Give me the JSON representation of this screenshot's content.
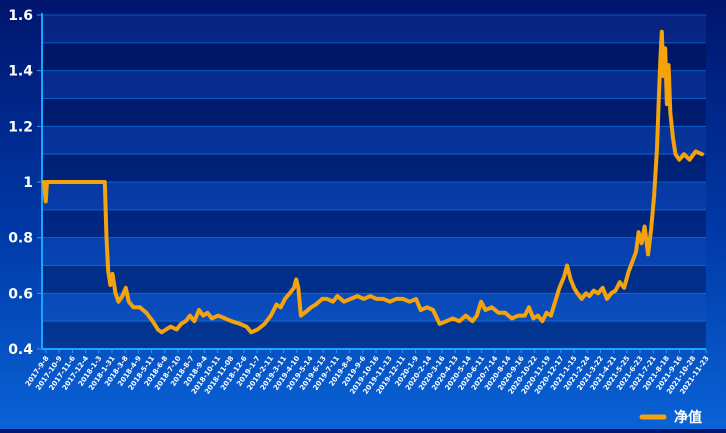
{
  "chart_data": {
    "type": "line",
    "title": "",
    "xlabel": "",
    "ylabel": "",
    "ylim": [
      0.4,
      1.6
    ],
    "yticks": [
      "0.4",
      "0.6",
      "0.8",
      "1",
      "1.2",
      "1.4",
      "1.6"
    ],
    "grid": "horizontal",
    "legend_position": "bottom-right",
    "line_color": "#f5a30d",
    "xtick_labels": [
      "2017-9-8",
      "2017-10-9",
      "2017-11-6",
      "2017-12-4",
      "2018-1-3",
      "2018-1-31",
      "2018-3-8",
      "2018-4-9",
      "2018-5-11",
      "2018-6-8",
      "2018-7-10",
      "2018-8-7",
      "2018-9-4",
      "2018-10-11",
      "2018-11-08",
      "2018-12-6",
      "2019-1-7",
      "2019-2-11",
      "2019-3-11",
      "2019-4-10",
      "2019-5-14",
      "2019-6-13",
      "2019-7-11",
      "2019-8-8",
      "2019-9-6",
      "2019-10-16",
      "2019-11-13",
      "2019-12-11",
      "2020-1-9",
      "2020-2-14",
      "2020-3-16",
      "2020-4-13",
      "2020-5-14",
      "2020-6-11",
      "2020-7-14",
      "2020-8-14",
      "2020-9-16",
      "2020-10-22",
      "2020-11-19",
      "2020-12-17",
      "2021-1-15",
      "2021-2-24",
      "2021-3-22",
      "2021-4-21",
      "2021-5-25",
      "2021-6-23",
      "2021-7-21",
      "2021-8-18",
      "2021-9-16",
      "2021-10-28",
      "2021-11-23"
    ],
    "series": [
      {
        "name": "净值",
        "points": [
          [
            "2017-09-08",
            1.0
          ],
          [
            "2017-09-12",
            0.93
          ],
          [
            "2017-09-15",
            1.0
          ],
          [
            "2017-11-01",
            1.0
          ],
          [
            "2018-01-01",
            1.0
          ],
          [
            "2018-01-28",
            1.0
          ],
          [
            "2018-02-01",
            0.8
          ],
          [
            "2018-02-05",
            0.68
          ],
          [
            "2018-02-10",
            0.63
          ],
          [
            "2018-02-15",
            0.67
          ],
          [
            "2018-02-22",
            0.6
          ],
          [
            "2018-03-01",
            0.57
          ],
          [
            "2018-03-10",
            0.59
          ],
          [
            "2018-03-18",
            0.62
          ],
          [
            "2018-03-25",
            0.57
          ],
          [
            "2018-04-05",
            0.55
          ],
          [
            "2018-04-20",
            0.55
          ],
          [
            "2018-05-05",
            0.53
          ],
          [
            "2018-05-20",
            0.5
          ],
          [
            "2018-06-01",
            0.47
          ],
          [
            "2018-06-10",
            0.46
          ],
          [
            "2018-06-20",
            0.47
          ],
          [
            "2018-07-01",
            0.48
          ],
          [
            "2018-07-15",
            0.47
          ],
          [
            "2018-07-25",
            0.49
          ],
          [
            "2018-08-05",
            0.5
          ],
          [
            "2018-08-15",
            0.52
          ],
          [
            "2018-08-25",
            0.5
          ],
          [
            "2018-09-05",
            0.54
          ],
          [
            "2018-09-15",
            0.52
          ],
          [
            "2018-09-25",
            0.53
          ],
          [
            "2018-10-05",
            0.51
          ],
          [
            "2018-10-20",
            0.52
          ],
          [
            "2018-11-05",
            0.51
          ],
          [
            "2018-11-20",
            0.5
          ],
          [
            "2018-12-10",
            0.49
          ],
          [
            "2018-12-25",
            0.48
          ],
          [
            "2019-01-05",
            0.46
          ],
          [
            "2019-01-20",
            0.47
          ],
          [
            "2019-02-05",
            0.49
          ],
          [
            "2019-02-20",
            0.52
          ],
          [
            "2019-03-05",
            0.56
          ],
          [
            "2019-03-15",
            0.55
          ],
          [
            "2019-03-25",
            0.58
          ],
          [
            "2019-04-05",
            0.6
          ],
          [
            "2019-04-15",
            0.62
          ],
          [
            "2019-04-20",
            0.65
          ],
          [
            "2019-04-25",
            0.62
          ],
          [
            "2019-05-01",
            0.52
          ],
          [
            "2019-05-10",
            0.53
          ],
          [
            "2019-05-25",
            0.55
          ],
          [
            "2019-06-05",
            0.56
          ],
          [
            "2019-06-20",
            0.58
          ],
          [
            "2019-07-01",
            0.58
          ],
          [
            "2019-07-15",
            0.57
          ],
          [
            "2019-07-25",
            0.59
          ],
          [
            "2019-08-10",
            0.57
          ],
          [
            "2019-08-25",
            0.58
          ],
          [
            "2019-09-10",
            0.59
          ],
          [
            "2019-09-25",
            0.58
          ],
          [
            "2019-10-10",
            0.59
          ],
          [
            "2019-10-25",
            0.58
          ],
          [
            "2019-11-10",
            0.58
          ],
          [
            "2019-11-25",
            0.57
          ],
          [
            "2019-12-10",
            0.58
          ],
          [
            "2019-12-25",
            0.58
          ],
          [
            "2020-01-10",
            0.57
          ],
          [
            "2020-01-25",
            0.58
          ],
          [
            "2020-02-05",
            0.54
          ],
          [
            "2020-02-20",
            0.55
          ],
          [
            "2020-03-05",
            0.54
          ],
          [
            "2020-03-20",
            0.49
          ],
          [
            "2020-04-05",
            0.5
          ],
          [
            "2020-04-20",
            0.51
          ],
          [
            "2020-05-05",
            0.5
          ],
          [
            "2020-05-20",
            0.52
          ],
          [
            "2020-06-05",
            0.5
          ],
          [
            "2020-06-15",
            0.52
          ],
          [
            "2020-06-25",
            0.57
          ],
          [
            "2020-07-05",
            0.54
          ],
          [
            "2020-07-20",
            0.55
          ],
          [
            "2020-08-05",
            0.53
          ],
          [
            "2020-08-20",
            0.53
          ],
          [
            "2020-09-05",
            0.51
          ],
          [
            "2020-09-20",
            0.52
          ],
          [
            "2020-10-05",
            0.52
          ],
          [
            "2020-10-15",
            0.55
          ],
          [
            "2020-10-25",
            0.51
          ],
          [
            "2020-11-05",
            0.52
          ],
          [
            "2020-11-15",
            0.5
          ],
          [
            "2020-11-25",
            0.53
          ],
          [
            "2020-12-05",
            0.52
          ],
          [
            "2020-12-15",
            0.57
          ],
          [
            "2020-12-25",
            0.62
          ],
          [
            "2021-01-05",
            0.66
          ],
          [
            "2021-01-12",
            0.7
          ],
          [
            "2021-01-20",
            0.65
          ],
          [
            "2021-01-28",
            0.62
          ],
          [
            "2021-02-05",
            0.6
          ],
          [
            "2021-02-15",
            0.58
          ],
          [
            "2021-02-25",
            0.6
          ],
          [
            "2021-03-05",
            0.59
          ],
          [
            "2021-03-15",
            0.61
          ],
          [
            "2021-03-25",
            0.6
          ],
          [
            "2021-04-05",
            0.62
          ],
          [
            "2021-04-15",
            0.58
          ],
          [
            "2021-04-25",
            0.6
          ],
          [
            "2021-05-05",
            0.61
          ],
          [
            "2021-05-15",
            0.64
          ],
          [
            "2021-05-25",
            0.62
          ],
          [
            "2021-06-05",
            0.68
          ],
          [
            "2021-06-15",
            0.72
          ],
          [
            "2021-06-22",
            0.75
          ],
          [
            "2021-06-28",
            0.82
          ],
          [
            "2021-07-05",
            0.78
          ],
          [
            "2021-07-12",
            0.84
          ],
          [
            "2021-07-20",
            0.74
          ],
          [
            "2021-07-27",
            0.83
          ],
          [
            "2021-08-03",
            0.95
          ],
          [
            "2021-08-10",
            1.12
          ],
          [
            "2021-08-14",
            1.3
          ],
          [
            "2021-08-18",
            1.45
          ],
          [
            "2021-08-21",
            1.54
          ],
          [
            "2021-08-25",
            1.38
          ],
          [
            "2021-08-29",
            1.48
          ],
          [
            "2021-09-02",
            1.28
          ],
          [
            "2021-09-06",
            1.42
          ],
          [
            "2021-09-10",
            1.25
          ],
          [
            "2021-09-16",
            1.16
          ],
          [
            "2021-09-22",
            1.1
          ],
          [
            "2021-10-01",
            1.08
          ],
          [
            "2021-10-12",
            1.1
          ],
          [
            "2021-10-25",
            1.08
          ],
          [
            "2021-11-08",
            1.11
          ],
          [
            "2021-11-23",
            1.1
          ]
        ]
      }
    ]
  }
}
